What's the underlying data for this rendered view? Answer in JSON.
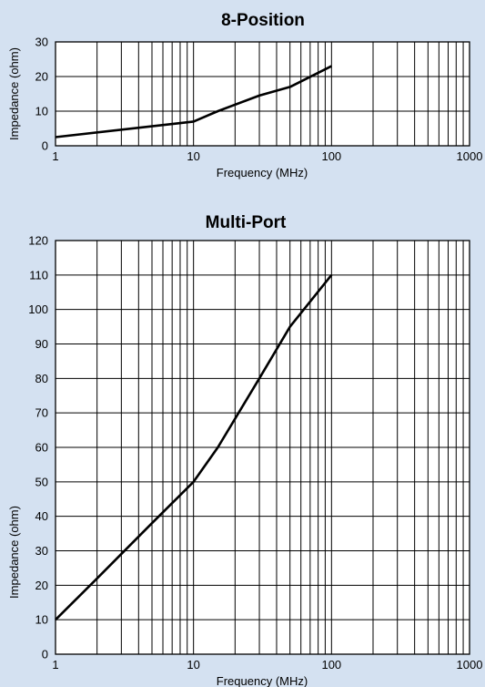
{
  "colors": {
    "background": "#d4e1f1",
    "plot_area": "#ffffff",
    "grid": "#000000",
    "series": "#000000"
  },
  "chart_data": [
    {
      "type": "line",
      "title": "8-Position",
      "xlabel": "Frequency (MHz)",
      "ylabel": "Impedance (ohm)",
      "x_scale": "log",
      "xlim": [
        1,
        1000
      ],
      "ylim": [
        0,
        30
      ],
      "x_ticks": [
        1,
        10,
        100,
        1000
      ],
      "x_tick_labels": [
        "1",
        "10",
        "100",
        "1000"
      ],
      "y_ticks": [
        0,
        10,
        20,
        30
      ],
      "y_tick_labels": [
        "0",
        "10",
        "20",
        "30"
      ],
      "grid": true,
      "series": [
        {
          "x": [
            1,
            10,
            15,
            30,
            50,
            100
          ],
          "y": [
            2.5,
            7,
            10,
            14.5,
            17,
            23
          ]
        }
      ]
    },
    {
      "type": "line",
      "title": "Multi-Port",
      "xlabel": "Frequency (MHz)",
      "ylabel": "Impedance (ohm)",
      "x_scale": "log",
      "xlim": [
        1,
        1000
      ],
      "ylim": [
        0,
        120
      ],
      "x_ticks": [
        1,
        10,
        100,
        1000
      ],
      "x_tick_labels": [
        "1",
        "10",
        "100",
        "1000"
      ],
      "y_ticks": [
        0,
        10,
        20,
        30,
        40,
        50,
        60,
        70,
        80,
        90,
        100,
        110,
        120
      ],
      "y_tick_labels": [
        "0",
        "10",
        "20",
        "30",
        "40",
        "50",
        "60",
        "70",
        "80",
        "90",
        "100",
        "110",
        "120"
      ],
      "grid": true,
      "series": [
        {
          "x": [
            1,
            2,
            5,
            10,
            15,
            30,
            50,
            100
          ],
          "y": [
            10,
            22,
            38,
            50,
            60,
            80,
            95,
            110
          ]
        }
      ]
    }
  ]
}
